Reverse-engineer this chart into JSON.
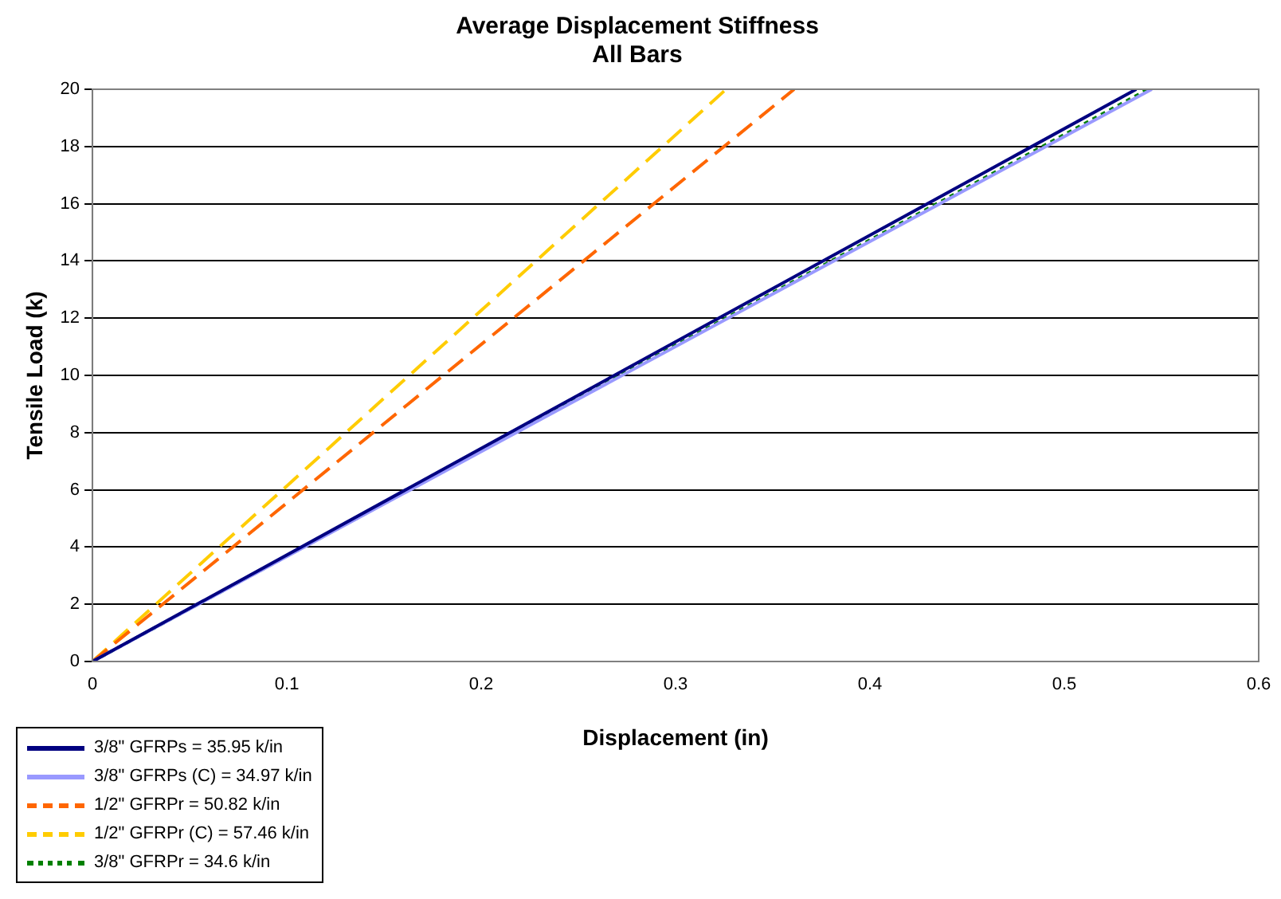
{
  "chart_data": {
    "type": "line",
    "title": "Average Displacement Stiffness\nAll Bars",
    "xlabel": "Displacement (in)",
    "ylabel": "Tensile Load (k)",
    "xlim": [
      0,
      0.6
    ],
    "xticks": [
      0,
      0.1,
      0.2,
      0.3,
      0.4,
      0.5,
      0.6
    ],
    "ylim": [
      0,
      20
    ],
    "yticks": [
      0,
      2,
      4,
      6,
      8,
      10,
      12,
      14,
      16,
      18,
      20
    ],
    "grid": "y",
    "legend": "bottom left",
    "marker": "none",
    "series": [
      {
        "name": "3/8\" GFRPs = 35.95 k/in",
        "color": "#000080",
        "line_style": "solid",
        "x": [
          0,
          0.537
        ],
        "values": [
          0,
          20
        ]
      },
      {
        "name": "3/8\" GFRPs (C) = 34.97 k/in",
        "color": "#9999ff",
        "line_style": "solid",
        "x": [
          0,
          0.545
        ],
        "values": [
          0,
          20
        ]
      },
      {
        "name": "1/2\" GFRPr = 50.82 k/in",
        "color": "#ff6600",
        "line_style": "dashed",
        "x": [
          0,
          0.361
        ],
        "values": [
          0,
          20
        ]
      },
      {
        "name": "1/2\" GFRPr (C) = 57.46 k/in",
        "color": "#ffcc00",
        "line_style": "dashed",
        "x": [
          0,
          0.326
        ],
        "values": [
          0,
          20
        ]
      },
      {
        "name": "3/8\" GFRPr = 34.6 k/in",
        "color": "#008000",
        "line_style": "dotted",
        "x": [
          0,
          0.543
        ],
        "values": [
          0,
          20
        ]
      }
    ]
  }
}
